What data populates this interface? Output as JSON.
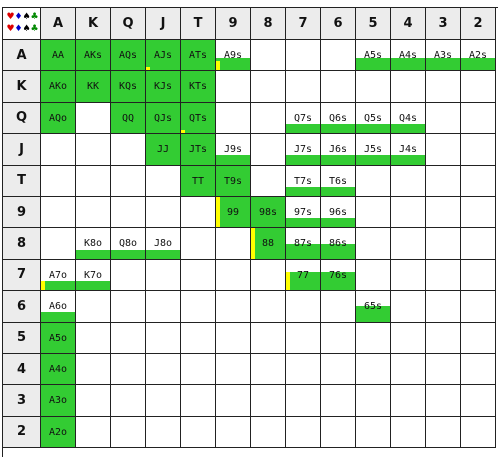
{
  "ranks": [
    "A",
    "K",
    "Q",
    "J",
    "T",
    "9",
    "8",
    "7",
    "6",
    "5",
    "4",
    "3",
    "2"
  ],
  "suit_legend": {
    "row1": [
      "♥",
      "♦",
      "♠",
      "♣"
    ],
    "row2": [
      "♥",
      "♦",
      "♠",
      "♣"
    ]
  },
  "colors": {
    "fill": "#33cc33",
    "partial": "#ffff00",
    "header_bg": "#ececec",
    "grid_line": "#222222"
  },
  "cells": [
    {
      "r": 0,
      "c": 0,
      "label": "AA",
      "f": 1.0
    },
    {
      "r": 0,
      "c": 1,
      "label": "AKs",
      "f": 1.0
    },
    {
      "r": 0,
      "c": 2,
      "label": "AQs",
      "f": 1.0
    },
    {
      "r": 0,
      "c": 3,
      "label": "AJs",
      "f": 1.0,
      "y": 0.1
    },
    {
      "r": 0,
      "c": 4,
      "label": "ATs",
      "f": 1.0
    },
    {
      "r": 0,
      "c": 5,
      "label": "A9s",
      "f": 0.4,
      "y": 0.3
    },
    {
      "r": 0,
      "c": 9,
      "label": "A5s",
      "f": 0.4
    },
    {
      "r": 0,
      "c": 10,
      "label": "A4s",
      "f": 0.4
    },
    {
      "r": 0,
      "c": 11,
      "label": "A3s",
      "f": 0.4
    },
    {
      "r": 0,
      "c": 12,
      "label": "A2s",
      "f": 0.4
    },
    {
      "r": 1,
      "c": 0,
      "label": "AKo",
      "f": 1.0
    },
    {
      "r": 1,
      "c": 1,
      "label": "KK",
      "f": 1.0
    },
    {
      "r": 1,
      "c": 2,
      "label": "KQs",
      "f": 1.0
    },
    {
      "r": 1,
      "c": 3,
      "label": "KJs",
      "f": 1.0
    },
    {
      "r": 1,
      "c": 4,
      "label": "KTs",
      "f": 1.0
    },
    {
      "r": 2,
      "c": 0,
      "label": "AQo",
      "f": 1.0
    },
    {
      "r": 2,
      "c": 2,
      "label": "QQ",
      "f": 1.0
    },
    {
      "r": 2,
      "c": 3,
      "label": "QJs",
      "f": 1.0
    },
    {
      "r": 2,
      "c": 4,
      "label": "QTs",
      "f": 1.0,
      "y": 0.1
    },
    {
      "r": 2,
      "c": 7,
      "label": "Q7s",
      "f": 0.3
    },
    {
      "r": 2,
      "c": 8,
      "label": "Q6s",
      "f": 0.3
    },
    {
      "r": 2,
      "c": 9,
      "label": "Q5s",
      "f": 0.3
    },
    {
      "r": 2,
      "c": 10,
      "label": "Q4s",
      "f": 0.3
    },
    {
      "r": 3,
      "c": 3,
      "label": "JJ",
      "f": 1.0
    },
    {
      "r": 3,
      "c": 4,
      "label": "JTs",
      "f": 1.0
    },
    {
      "r": 3,
      "c": 5,
      "label": "J9s",
      "f": 0.3
    },
    {
      "r": 3,
      "c": 7,
      "label": "J7s",
      "f": 0.3
    },
    {
      "r": 3,
      "c": 8,
      "label": "J6s",
      "f": 0.3
    },
    {
      "r": 3,
      "c": 9,
      "label": "J5s",
      "f": 0.3
    },
    {
      "r": 3,
      "c": 10,
      "label": "J4s",
      "f": 0.3
    },
    {
      "r": 4,
      "c": 4,
      "label": "TT",
      "f": 1.0
    },
    {
      "r": 4,
      "c": 5,
      "label": "T9s",
      "f": 1.0
    },
    {
      "r": 4,
      "c": 7,
      "label": "T7s",
      "f": 0.3
    },
    {
      "r": 4,
      "c": 8,
      "label": "T6s",
      "f": 0.3
    },
    {
      "r": 5,
      "c": 5,
      "label": "99",
      "f": 1.0,
      "y": 1.0
    },
    {
      "r": 5,
      "c": 6,
      "label": "98s",
      "f": 1.0
    },
    {
      "r": 5,
      "c": 7,
      "label": "97s",
      "f": 0.3
    },
    {
      "r": 5,
      "c": 8,
      "label": "96s",
      "f": 0.3
    },
    {
      "r": 6,
      "c": 1,
      "label": "K8o",
      "f": 0.3
    },
    {
      "r": 6,
      "c": 2,
      "label": "Q8o",
      "f": 0.3
    },
    {
      "r": 6,
      "c": 3,
      "label": "J8o",
      "f": 0.3
    },
    {
      "r": 6,
      "c": 6,
      "label": "88",
      "f": 1.0,
      "y": 1.0
    },
    {
      "r": 6,
      "c": 7,
      "label": "87s",
      "f": 0.5
    },
    {
      "r": 6,
      "c": 8,
      "label": "86s",
      "f": 0.5
    },
    {
      "r": 7,
      "c": 0,
      "label": "A7o",
      "f": 0.3,
      "y": 0.3
    },
    {
      "r": 7,
      "c": 1,
      "label": "K7o",
      "f": 0.3
    },
    {
      "r": 7,
      "c": 7,
      "label": "77",
      "f": 0.6,
      "y": 0.6
    },
    {
      "r": 7,
      "c": 8,
      "label": "76s",
      "f": 0.6
    },
    {
      "r": 8,
      "c": 0,
      "label": "A6o",
      "f": 0.3
    },
    {
      "r": 8,
      "c": 9,
      "label": "65s",
      "f": 0.5
    },
    {
      "r": 9,
      "c": 0,
      "label": "A5o",
      "f": 1.0
    },
    {
      "r": 10,
      "c": 0,
      "label": "A4o",
      "f": 1.0
    },
    {
      "r": 11,
      "c": 0,
      "label": "A3o",
      "f": 1.0
    },
    {
      "r": 12,
      "c": 0,
      "label": "A2o",
      "f": 1.0
    }
  ]
}
